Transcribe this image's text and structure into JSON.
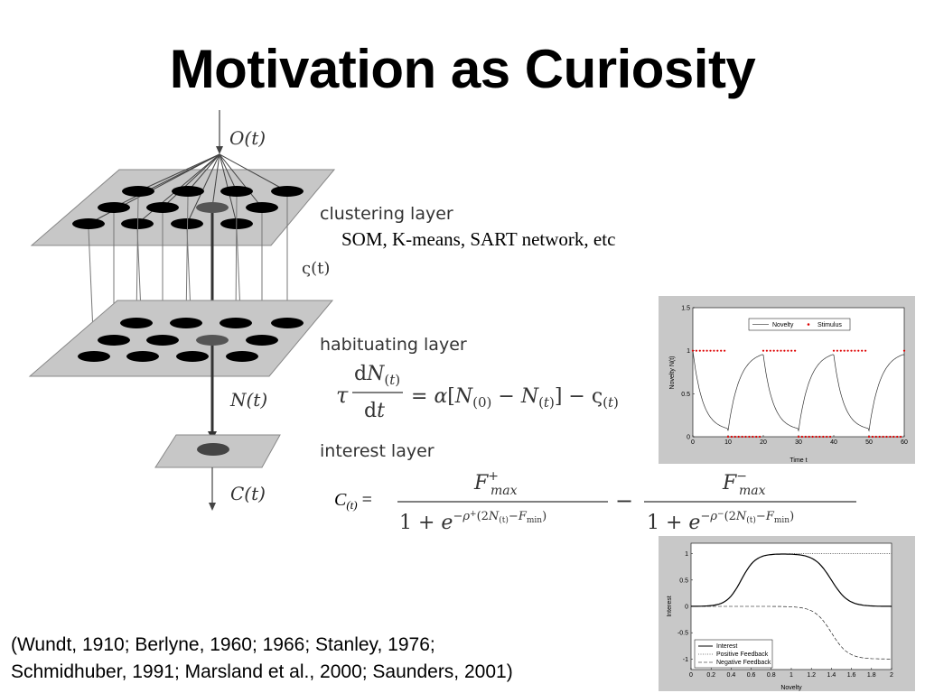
{
  "title": "Motivation as Curiosity",
  "diagram": {
    "top_label": "O(t)",
    "layer1": "clustering layer",
    "layer1_sub": "SOM, K-means, SART network, etc",
    "varsigma": "ς(t)",
    "layer2": "habituating layer",
    "n_label": "N(t)",
    "layer3": "interest layer",
    "c_label": "C(t)"
  },
  "equations": {
    "habituation": "τ dN(t)/dt = α[N(0) − N(t)] − ς(t)",
    "interest_lhs": "C(t) =",
    "interest_rhs_num1": "F+max",
    "interest_rhs_num2": "F−max"
  },
  "citation": {
    "line1": "(Wundt, 1910; Berlyne, 1960; 1966; Stanley, 1976;",
    "line2": "Schmidhuber, 1991; Marsland et al., 2000; Saunders, 2001)"
  },
  "chart_data": [
    {
      "type": "line",
      "ylabel": "Novelty N(t)",
      "xlabel": "Time t",
      "xlim": [
        0,
        60
      ],
      "ylim": [
        0,
        1.5
      ],
      "xticks": [
        "0",
        "10",
        "20",
        "30",
        "40",
        "50",
        "60"
      ],
      "yticks": [
        "0",
        "0.5",
        "1",
        "1.5"
      ],
      "legend": [
        "Novelty",
        "Stimulus"
      ],
      "legend_position": "top-right",
      "series": [
        {
          "name": "Novelty",
          "x": [
            0,
            2,
            4,
            6,
            8,
            10,
            12,
            14,
            16,
            18,
            20,
            22,
            24,
            26,
            28,
            30,
            32,
            34,
            36,
            38,
            40,
            42,
            44,
            46,
            48,
            50,
            52,
            54,
            56,
            58,
            60
          ],
          "values": [
            1,
            0.55,
            0.3,
            0.17,
            0.1,
            0.07,
            0.55,
            0.75,
            0.86,
            0.92,
            1.0,
            0.55,
            0.3,
            0.17,
            0.1,
            0.07,
            0.55,
            0.75,
            0.86,
            0.92,
            1.0,
            0.55,
            0.3,
            0.17,
            0.1,
            0.07,
            0.55,
            0.75,
            0.86,
            0.92,
            0.95
          ]
        },
        {
          "name": "Stimulus",
          "intervals_on": [
            [
              0,
              10
            ],
            [
              20,
              30
            ],
            [
              40,
              50
            ],
            [
              60,
              60
            ]
          ],
          "on_value": 1,
          "off_value": 0
        }
      ]
    },
    {
      "type": "line",
      "ylabel": "Interest",
      "xlabel": "Novelty",
      "xlim": [
        0,
        2
      ],
      "ylim": [
        -1.2,
        1.2
      ],
      "xticks": [
        "0",
        "0.2",
        "0.4",
        "0.6",
        "0.8",
        "1",
        "1.2",
        "1.4",
        "1.6",
        "1.8",
        "2"
      ],
      "yticks": [
        "-1",
        "-0.5",
        "0",
        "0.5",
        "1"
      ],
      "legend": [
        "Interest",
        "Positive Feedback",
        "Negative Feedback"
      ],
      "legend_position": "bottom-left",
      "series": [
        {
          "name": "Interest",
          "x": [
            0,
            0.2,
            0.3,
            0.4,
            0.5,
            0.6,
            0.7,
            0.8,
            1.0,
            1.1,
            1.2,
            1.3,
            1.4,
            1.5,
            1.6,
            1.8,
            2.0
          ],
          "values": [
            0,
            0,
            0.05,
            0.25,
            0.6,
            0.85,
            0.96,
            1.0,
            1.0,
            0.97,
            0.85,
            0.6,
            0.35,
            0.15,
            0.05,
            0,
            0
          ]
        },
        {
          "name": "Positive Feedback",
          "x": [
            0,
            0.2,
            0.3,
            0.4,
            0.5,
            0.6,
            0.7,
            0.8,
            1.0,
            2.0
          ],
          "values": [
            0,
            0,
            0.05,
            0.25,
            0.6,
            0.85,
            0.96,
            1.0,
            1.0,
            1.0
          ]
        },
        {
          "name": "Negative Feedback",
          "x": [
            0,
            1.0,
            1.1,
            1.2,
            1.3,
            1.4,
            1.5,
            1.6,
            1.7,
            1.8,
            2.0
          ],
          "values": [
            0,
            0,
            -0.03,
            -0.15,
            -0.4,
            -0.65,
            -0.83,
            -0.93,
            -0.97,
            -1.0,
            -1.0
          ]
        }
      ]
    }
  ]
}
